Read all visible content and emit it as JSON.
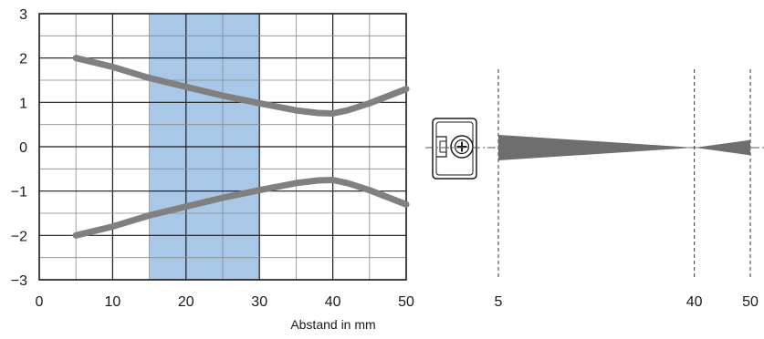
{
  "chart_data": [
    {
      "type": "line",
      "xlabel": "Abstand in mm",
      "ylabel": "",
      "xlim": [
        0,
        50
      ],
      "ylim": [
        -3,
        3
      ],
      "x_ticks": [
        "0",
        "10",
        "20",
        "30",
        "40",
        "50"
      ],
      "y_ticks": [
        "3",
        "2",
        "1",
        "0",
        "−1",
        "−2",
        "−3"
      ],
      "grid": true,
      "highlight_band": {
        "x_from": 15,
        "x_to": 30,
        "color": "#a9c8e8"
      },
      "series_color": "#808080",
      "series": [
        {
          "x": [
            5,
            10,
            15,
            20,
            25,
            30,
            35,
            38,
            40,
            42,
            45,
            50
          ],
          "y": [
            2.0,
            1.8,
            1.55,
            1.35,
            1.15,
            0.98,
            0.82,
            0.76,
            0.75,
            0.82,
            0.98,
            1.3
          ]
        },
        {
          "x": [
            5,
            10,
            15,
            20,
            25,
            30,
            35,
            38,
            40,
            42,
            45,
            50
          ],
          "y": [
            -2.0,
            -1.8,
            -1.55,
            -1.35,
            -1.15,
            -0.98,
            -0.82,
            -0.76,
            -0.75,
            -0.82,
            -0.98,
            -1.3
          ]
        }
      ]
    },
    {
      "type": "area",
      "x_ticks": [
        "5",
        "40",
        "50"
      ],
      "x_tick_values": [
        5,
        40,
        50
      ],
      "xlim": [
        5,
        50
      ],
      "beam_color": "#6e6e6e",
      "beam": {
        "x": [
          5,
          40,
          50
        ],
        "half_width": [
          0.3,
          0.0,
          0.18
        ]
      },
      "sensor_icon": "proximity-sensor-icon"
    }
  ]
}
